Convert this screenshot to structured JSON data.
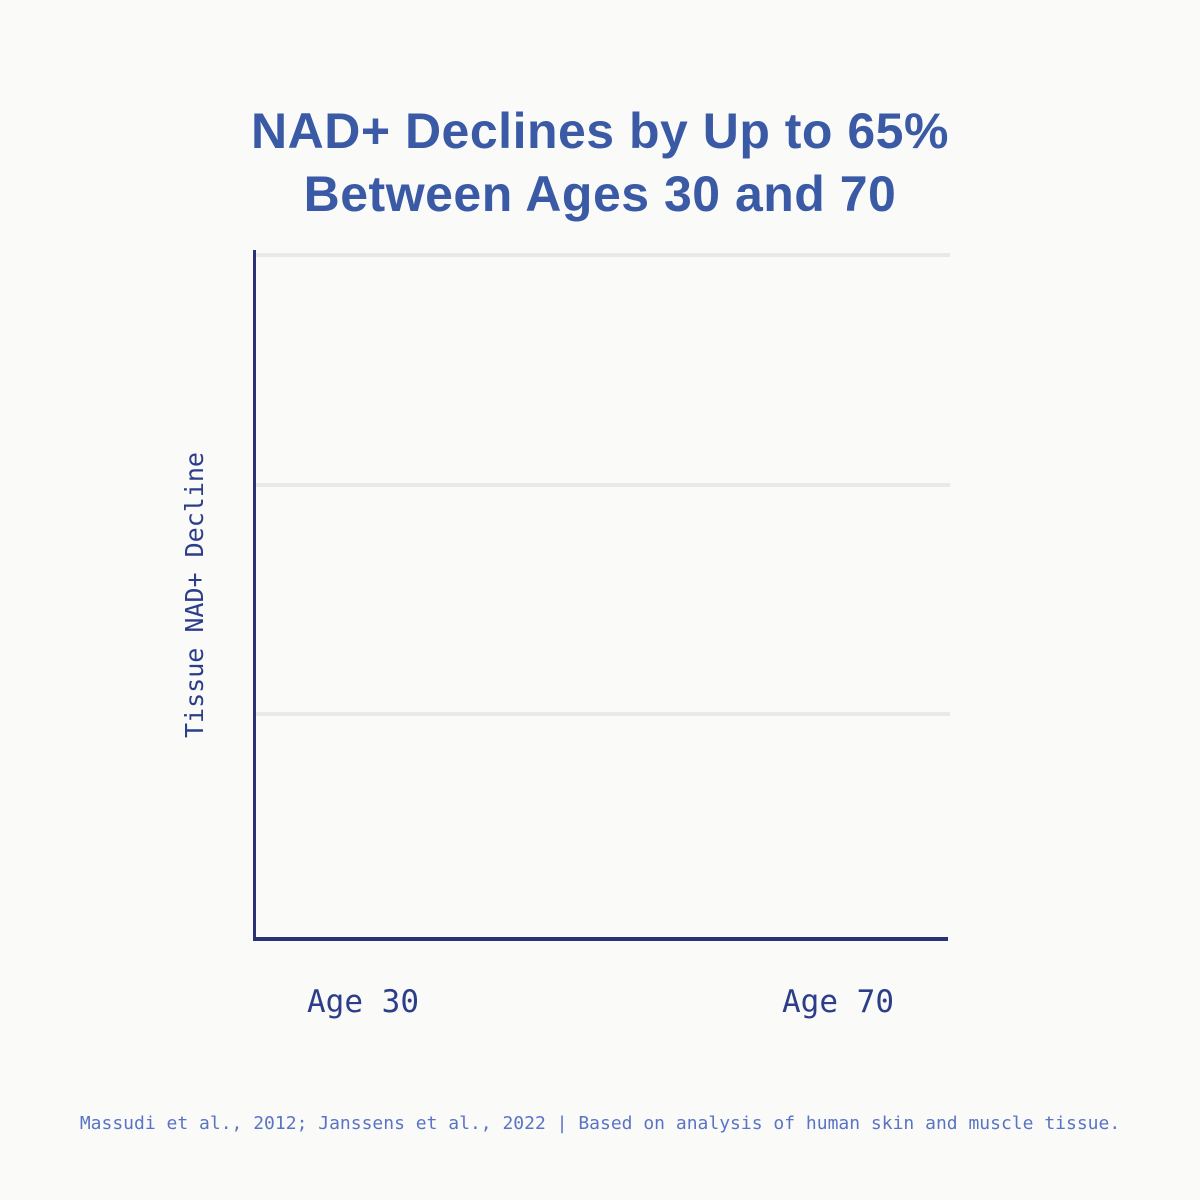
{
  "title": {
    "line1": "NAD+ Declines by Up to 65%",
    "line2": "Between Ages 30 and 70"
  },
  "chart": {
    "ylabel": "Tissue NAD+ Decline",
    "x_ticks": [
      "Age 30",
      "Age 70"
    ]
  },
  "footer": {
    "citation": "Massudi et al., 2012; Janssens et al., 2022 | Based on analysis of human skin and muscle tissue."
  },
  "colors": {
    "background": "#fafaf8",
    "title_blue": "#3a5aa6",
    "axis_navy": "#2a3474",
    "tick_label_navy": "#2c3e8a",
    "footer_blue": "#5a74c5",
    "gridline_gray": "#e9e9e7"
  },
  "chart_data": {
    "type": "bar",
    "title": "NAD+ Declines by Up to 65% Between Ages 30 and 70",
    "categories": [
      "Age 30",
      "Age 70"
    ],
    "values": [],
    "xlabel": "",
    "ylabel": "Tissue NAD+ Decline",
    "y_tick_labels": [],
    "gridlines": {
      "horizontal_count": 3,
      "visible": true
    },
    "legend": false,
    "plot_state": "axes and gridlines only, no data series rendered"
  }
}
